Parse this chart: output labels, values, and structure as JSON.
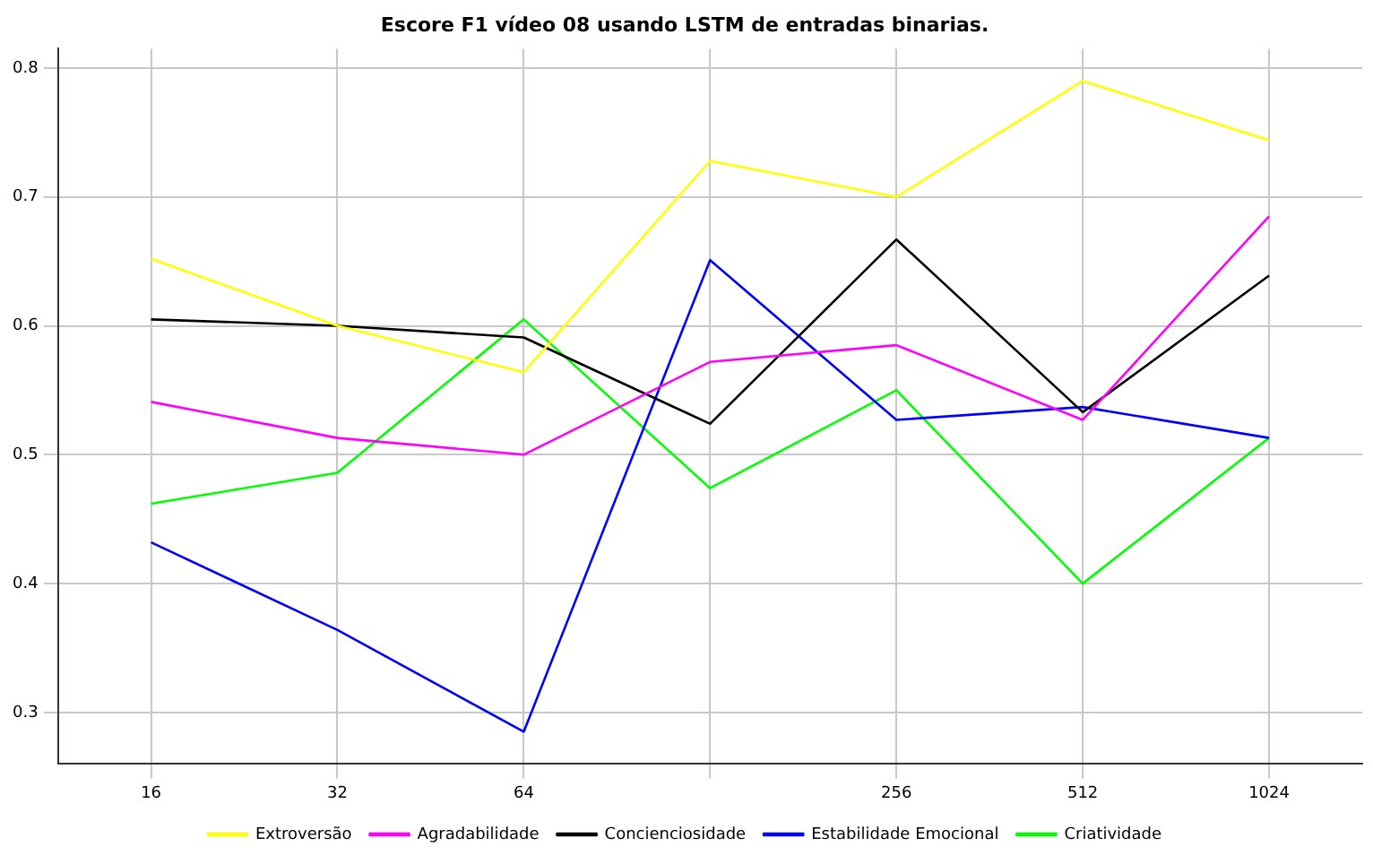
{
  "chart_data": {
    "type": "line",
    "title": "Escore F1 vídeo 08 usando LSTM de entradas binarias.",
    "categories": [
      "16",
      "32",
      "64",
      null,
      "256",
      "512",
      "1024"
    ],
    "series": [
      {
        "name": "Extroversão",
        "color": "#ffff00",
        "values": [
          0.652,
          0.6,
          0.564,
          0.728,
          0.7,
          0.79,
          0.744
        ]
      },
      {
        "name": "Agradabilidade",
        "color": "#ff00ff",
        "values": [
          0.541,
          0.513,
          0.5,
          0.572,
          0.585,
          0.527,
          0.685
        ]
      },
      {
        "name": "Concienciosidade",
        "color": "#000000",
        "values": [
          0.605,
          0.6,
          0.591,
          0.524,
          0.667,
          0.533,
          0.639
        ]
      },
      {
        "name": "Estabilidade Emocional",
        "color": "#0000ff",
        "values": [
          0.432,
          0.364,
          0.285,
          0.651,
          0.527,
          0.537,
          0.513
        ]
      },
      {
        "name": "Criatividade",
        "color": "#00ff00",
        "values": [
          0.462,
          0.486,
          0.605,
          0.474,
          0.55,
          0.4,
          0.513
        ]
      }
    ],
    "ylim": [
      0.26,
      0.815
    ],
    "yticks": [
      0.3,
      0.4,
      0.5,
      0.6,
      0.7,
      0.8
    ],
    "grid": true,
    "legend": "bottom",
    "marker": "none",
    "line_style": "solid"
  }
}
